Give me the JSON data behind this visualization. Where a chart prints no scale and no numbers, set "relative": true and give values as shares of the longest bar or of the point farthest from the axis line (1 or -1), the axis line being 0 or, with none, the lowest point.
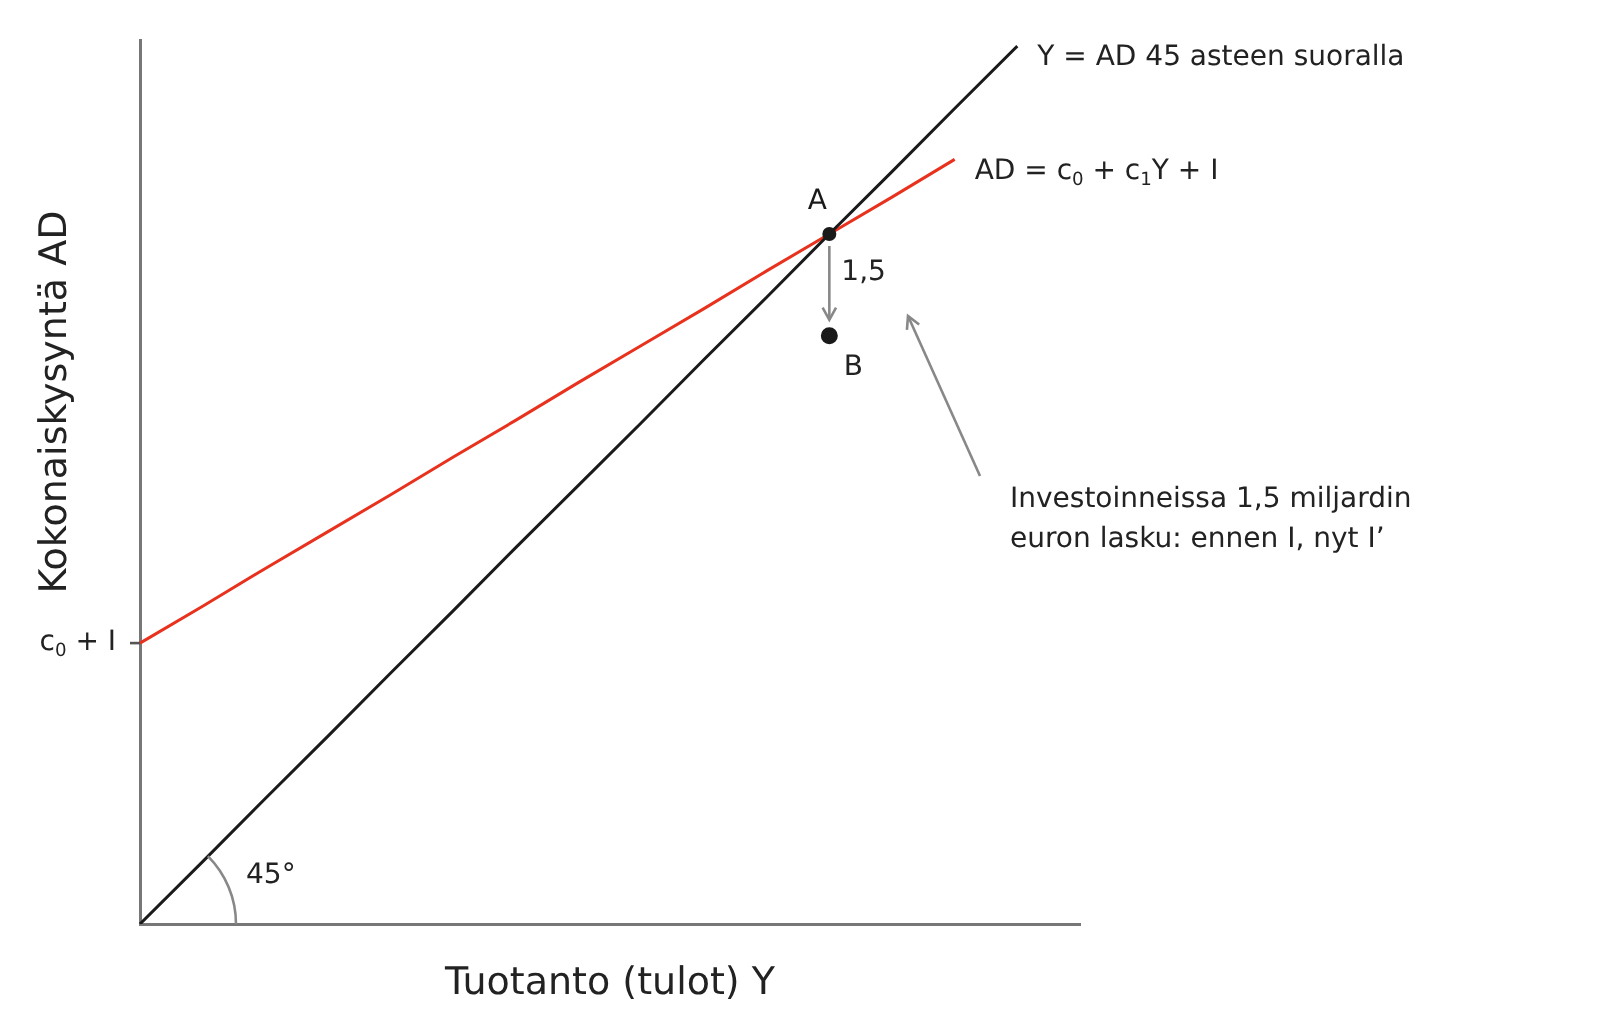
{
  "chart_data": {
    "type": "line",
    "relative": true,
    "xlabel": "Tuotanto (tulot) Y",
    "ylabel": "Kokonaiskysyntä AD",
    "categories": [
      null,
      null,
      null,
      null,
      null,
      null,
      null,
      null,
      null,
      null,
      null,
      null,
      null,
      null,
      null,
      null
    ],
    "series": [
      {
        "name": "Y = AD 45 asteen suoralla",
        "color": "#1a1a1a",
        "values": [
          0,
          0.071,
          0.143,
          0.214,
          0.286,
          0.357,
          0.429,
          0.5,
          0.571,
          0.643,
          0.714,
          0.786,
          0.857,
          0.929,
          1,
          null
        ]
      },
      {
        "name": "AD = c$_{0}$ + c$_{1}$Y + I",
        "color": "#e8321e",
        "values": [
          0.32,
          0.362,
          0.405,
          0.447,
          0.489,
          0.532,
          0.574,
          0.617,
          0.659,
          0.701,
          0.744,
          0.786,
          0.828,
          0.871,
          null,
          null
        ]
      },
      {
        "name": "B",
        "color": "#1a1a1a",
        "marker": "circle",
        "values": [
          null,
          null,
          null,
          null,
          null,
          null,
          null,
          null,
          null,
          null,
          null,
          0.67,
          null,
          null,
          null,
          null
        ]
      }
    ],
    "annotations": [
      "c$_{0}$ + I",
      "1,5",
      "Investoinneissa 1,5 miljardin euron lasku: ennen I, nyt I’",
      "45°",
      {
        "text": "A",
        "y": 0.786
      }
    ],
    "grid": false
  }
}
